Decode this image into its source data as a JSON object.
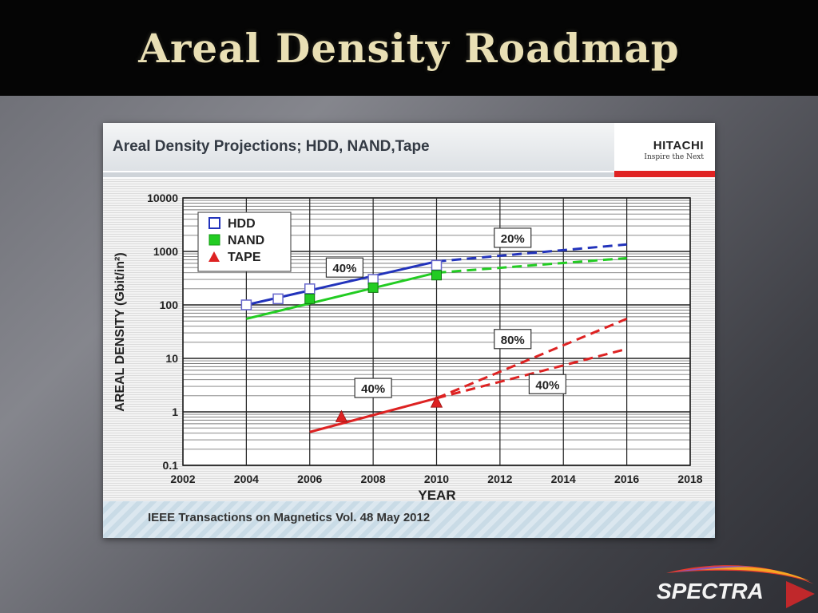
{
  "slide": {
    "title": "Areal Density Roadmap"
  },
  "figure": {
    "title": "Areal Density Projections; HDD, NAND,Tape",
    "brand": {
      "name": "HITACHI",
      "tagline": "Inspire the Next"
    },
    "source": "IEEE Transactions on Magnetics Vol. 48  May 2012"
  },
  "logo": {
    "text": "SPECTRA"
  },
  "colors": {
    "hdd": "#2233bb",
    "nand": "#22cc22",
    "tape": "#dd2222",
    "title": "#e9dfb4",
    "brand_red": "#e02222"
  },
  "chart_data": {
    "type": "line",
    "title": "",
    "xlabel": "YEAR",
    "ylabel": "AREAL DENSITY (Gbit/in²)",
    "xlim": [
      2002,
      2018
    ],
    "ylim": [
      0.1,
      10000
    ],
    "yscale": "log",
    "grid": true,
    "legend": "top-left",
    "x_ticks": [
      "2002",
      "2004",
      "2006",
      "2008",
      "2010",
      "2012",
      "2014",
      "2016",
      "2018"
    ],
    "y_ticks": [
      "0.1",
      "1",
      "10",
      "100",
      "1000",
      "10000"
    ],
    "series": [
      {
        "name": "HDD",
        "marker": "open-square",
        "points": [
          [
            2004,
            100
          ],
          [
            2005,
            130
          ],
          [
            2006,
            200
          ],
          [
            2008,
            300
          ],
          [
            2010,
            550
          ]
        ],
        "trend": [
          [
            2004,
            100
          ],
          [
            2010,
            650
          ]
        ],
        "projection": [
          [
            2010,
            650
          ],
          [
            2016,
            1350
          ]
        ]
      },
      {
        "name": "NAND",
        "marker": "filled-square",
        "points": [
          [
            2006,
            130
          ],
          [
            2008,
            210
          ],
          [
            2010,
            360
          ]
        ],
        "trend": [
          [
            2004,
            55
          ],
          [
            2010,
            400
          ]
        ],
        "projection": [
          [
            2010,
            400
          ],
          [
            2016,
            750
          ]
        ]
      },
      {
        "name": "TAPE",
        "marker": "triangle",
        "points": [
          [
            2007,
            0.8
          ],
          [
            2010,
            1.5
          ]
        ],
        "trend": [
          [
            2006,
            0.42
          ],
          [
            2010,
            1.8
          ]
        ],
        "projections": [
          [
            [
              2010,
              1.8
            ],
            [
              2016,
              55
            ]
          ],
          [
            [
              2010,
              1.8
            ],
            [
              2016,
              15
            ]
          ]
        ]
      }
    ],
    "annotations": [
      {
        "text": "40%",
        "x": 2007.1,
        "y": 500
      },
      {
        "text": "20%",
        "x": 2012.4,
        "y": 1800
      },
      {
        "text": "80%",
        "x": 2012.4,
        "y": 23
      },
      {
        "text": "40%",
        "x": 2008.0,
        "y": 2.8
      },
      {
        "text": "40%",
        "x": 2013.5,
        "y": 3.3
      }
    ]
  }
}
